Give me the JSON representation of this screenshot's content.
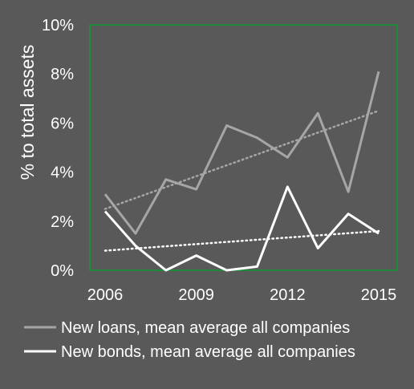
{
  "chart_data": {
    "type": "line",
    "x": [
      2006,
      2007,
      2008,
      2009,
      2010,
      2011,
      2012,
      2013,
      2014,
      2015
    ],
    "x_tick_labels": [
      "2006",
      "2009",
      "2012",
      "2015"
    ],
    "x_tick_values": [
      2006,
      2009,
      2012,
      2015
    ],
    "xlim": [
      2006,
      2015
    ],
    "ylim": [
      0,
      10
    ],
    "y_ticks": [
      0,
      2,
      4,
      6,
      8,
      10
    ],
    "y_tick_labels": [
      "0%",
      "2%",
      "4%",
      "6%",
      "8%",
      "10%"
    ],
    "ylabel": "% to total assets",
    "xlabel": "",
    "title": "",
    "grid": false,
    "legend_position": "bottom",
    "series": [
      {
        "name": "New loans, mean average all companies",
        "color": "#a6a6a6",
        "values": [
          3.1,
          1.5,
          3.7,
          3.3,
          5.9,
          5.4,
          4.6,
          6.4,
          3.2,
          8.1
        ],
        "trendline": [
          2.5,
          6.5
        ]
      },
      {
        "name": "New bonds, mean average all companies",
        "color": "#ffffff",
        "values": [
          2.4,
          1.0,
          0.0,
          0.6,
          0.0,
          0.15,
          3.4,
          0.9,
          2.3,
          1.5
        ],
        "trendline": [
          0.8,
          1.6
        ]
      }
    ],
    "colors": {
      "background": "#595959",
      "plot_border": "#1f8a3b"
    }
  }
}
